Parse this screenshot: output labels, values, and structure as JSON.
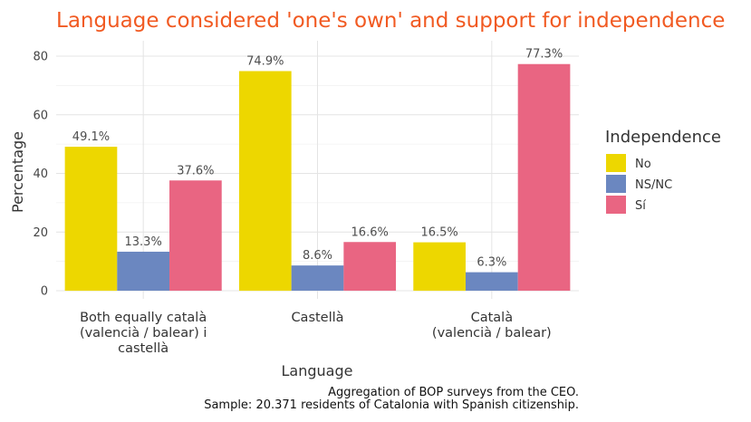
{
  "chart_data": {
    "type": "bar",
    "title": "Language considered 'one's own' and support for independence",
    "xlabel": "Language",
    "ylabel": "Percentage",
    "categories": [
      [
        "Both equally català",
        "(valencià / balear) i",
        "castellà"
      ],
      [
        "Castellà"
      ],
      [
        "Català",
        "(valencià / balear)"
      ]
    ],
    "series": [
      {
        "name": "No",
        "color": "#edd700",
        "values": [
          49.1,
          74.9,
          16.5
        ],
        "labels": [
          "49.1%",
          "74.9%",
          "16.5%"
        ]
      },
      {
        "name": "NS/NC",
        "color": "#6b87c0",
        "values": [
          13.3,
          8.6,
          6.3
        ],
        "labels": [
          "13.3%",
          "8.6%",
          "6.3%"
        ]
      },
      {
        "name": "Sí",
        "color": "#e96582",
        "values": [
          37.6,
          16.6,
          77.3
        ],
        "labels": [
          "37.6%",
          "16.6%",
          "77.3%"
        ]
      }
    ],
    "legend_title": "Independence",
    "legend_position": "right",
    "ylim": [
      0,
      85
    ],
    "yticks": [
      0,
      20,
      40,
      60,
      80
    ],
    "grid": true,
    "caption": [
      "Aggregation of BOP surveys from the CEO.",
      "Sample: 20.371 residents of Catalonia with Spanish citizenship."
    ]
  }
}
